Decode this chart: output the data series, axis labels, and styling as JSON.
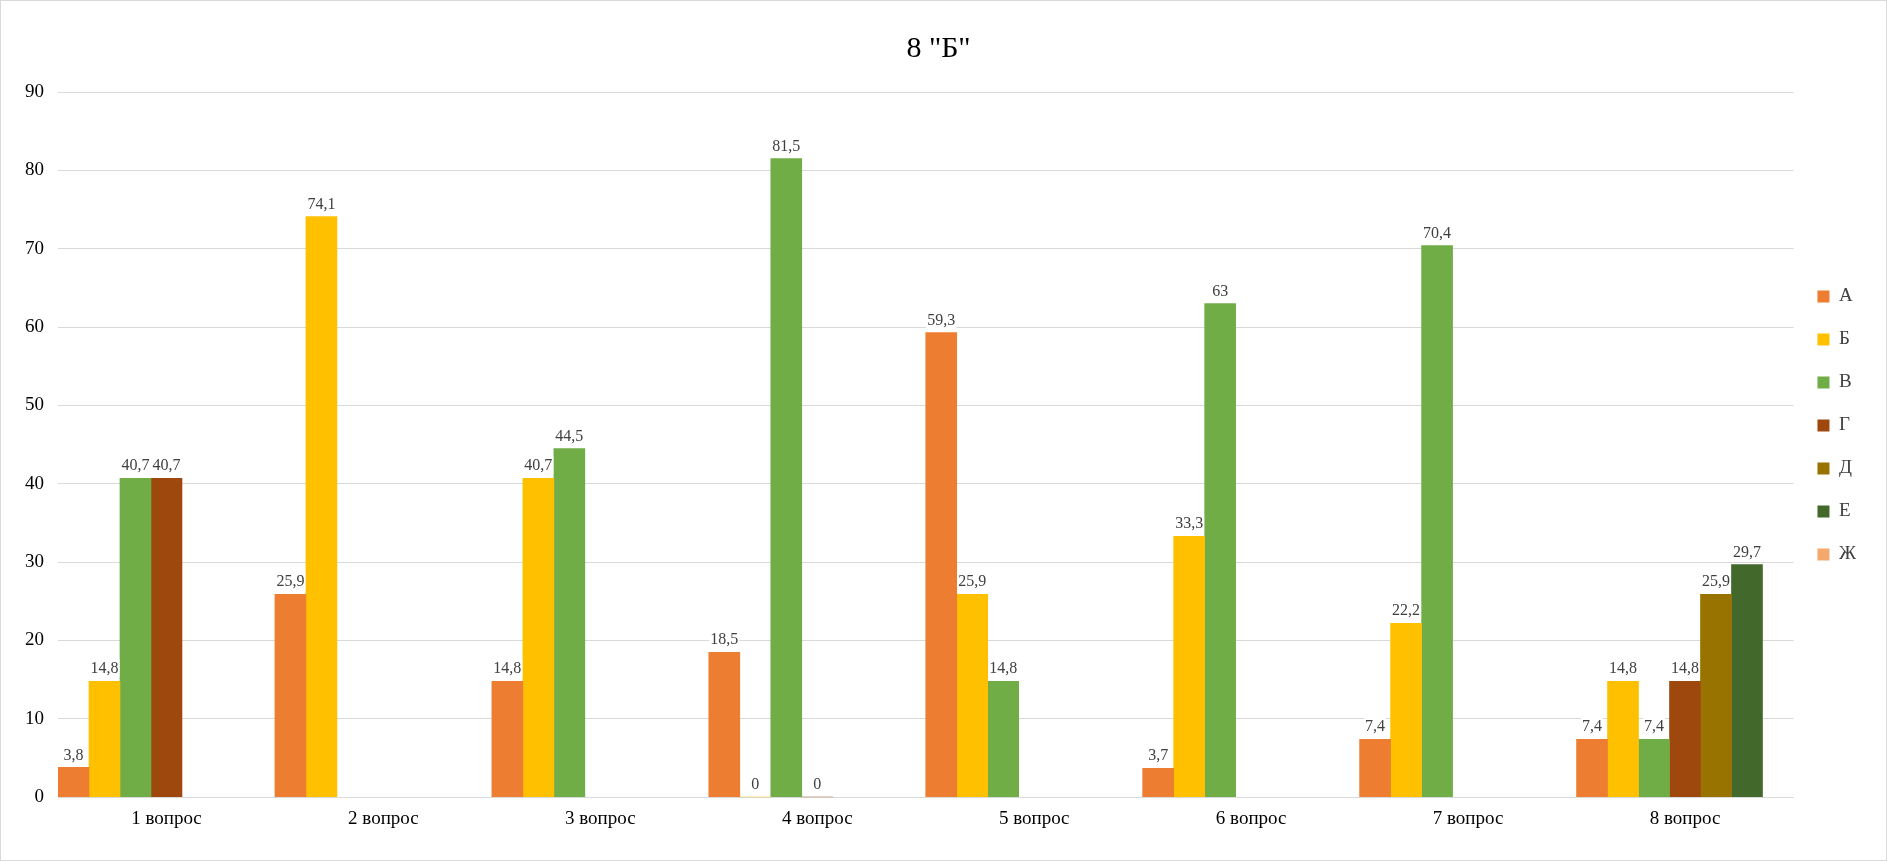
{
  "chart_data": {
    "type": "bar",
    "title": "8 \"Б\"",
    "categories": [
      "1 вопрос",
      "2 вопрос",
      "3 вопрос",
      "4 вопрос",
      "5 вопрос",
      "6 вопрос",
      "7 вопрос",
      "8 вопрос"
    ],
    "series": [
      {
        "name": "А",
        "color": "#ed7d31",
        "values": [
          3.8,
          25.9,
          14.8,
          18.5,
          59.3,
          3.7,
          7.4,
          7.4
        ],
        "value_labels": [
          "3,8",
          "25,9",
          "14,8",
          "18,5",
          "59,3",
          "3,7",
          "7,4",
          "7,4"
        ]
      },
      {
        "name": "Б",
        "color": "#ffc000",
        "values": [
          14.8,
          74.1,
          40.7,
          0,
          25.9,
          33.3,
          22.2,
          14.8
        ],
        "value_labels": [
          "14,8",
          "74,1",
          "40,7",
          "0",
          "25,9",
          "33,3",
          "22,2",
          "14,8"
        ]
      },
      {
        "name": "В",
        "color": "#70ad47",
        "values": [
          40.7,
          null,
          44.5,
          81.5,
          14.8,
          63,
          70.4,
          7.4
        ],
        "value_labels": [
          "40,7",
          null,
          "44,5",
          "81,5",
          "14,8",
          "63",
          "70,4",
          "7,4"
        ]
      },
      {
        "name": "Г",
        "color": "#9e480e",
        "values": [
          40.7,
          null,
          null,
          0,
          null,
          null,
          null,
          14.8
        ],
        "value_labels": [
          "40,7",
          null,
          null,
          "0",
          null,
          null,
          null,
          "14,8"
        ]
      },
      {
        "name": "Д",
        "color": "#997300",
        "values": [
          null,
          null,
          null,
          null,
          null,
          null,
          null,
          25.9
        ],
        "value_labels": [
          null,
          null,
          null,
          null,
          null,
          null,
          null,
          "25,9"
        ]
      },
      {
        "name": "Е",
        "color": "#43682b",
        "values": [
          null,
          null,
          null,
          null,
          null,
          null,
          null,
          29.7
        ],
        "value_labels": [
          null,
          null,
          null,
          null,
          null,
          null,
          null,
          "29,7"
        ]
      },
      {
        "name": "Ж",
        "color": "#f4a86e",
        "values": [
          null,
          null,
          null,
          null,
          null,
          null,
          null,
          null
        ]
      }
    ],
    "ylim": [
      0,
      90
    ],
    "yticks": [
      0,
      10,
      20,
      30,
      40,
      50,
      60,
      70,
      80,
      90
    ],
    "grid": "y",
    "legend": "right"
  }
}
